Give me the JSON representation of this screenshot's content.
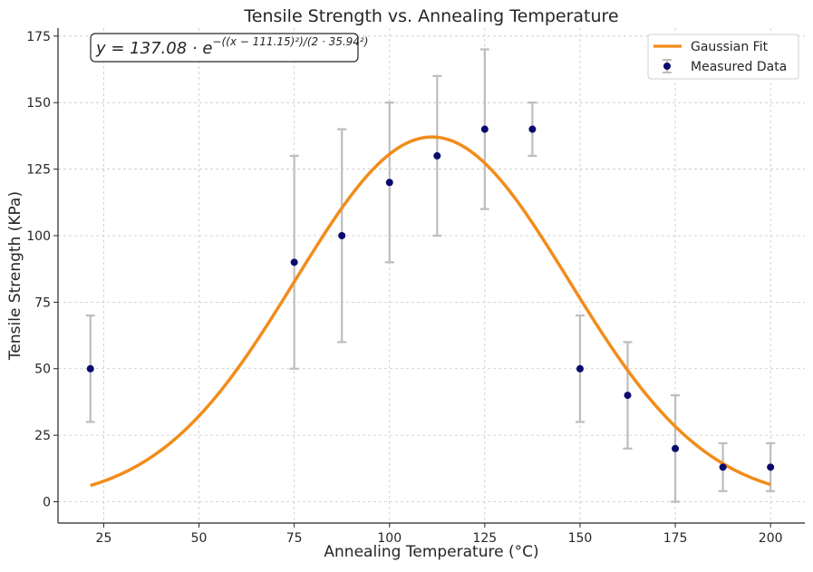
{
  "chart_data": {
    "type": "scatter",
    "title": "Tensile Strength vs. Annealing Temperature",
    "xlabel": "Annealing Temperature (°C)",
    "ylabel": "Tensile Strength (KPa)",
    "xlim": [
      13,
      209
    ],
    "ylim": [
      -8,
      178
    ],
    "xticks": [
      25,
      50,
      75,
      100,
      125,
      150,
      175,
      200
    ],
    "yticks": [
      0,
      25,
      50,
      75,
      100,
      125,
      150,
      175
    ],
    "grid": true,
    "legend_position": "top-right",
    "annotation": {
      "prefix": "y = 137.08 · e",
      "exponent": "−((x − 111.15)²)/(2 · 35.94²)"
    },
    "series": [
      {
        "name": "Gaussian Fit",
        "kind": "line",
        "color": "#f28c1a",
        "params": {
          "a": 137.08,
          "mu": 111.15,
          "sigma": 35.94
        },
        "x_range": [
          21.5,
          200
        ]
      },
      {
        "name": "Measured Data",
        "kind": "scatter",
        "color": "#0a0a6e",
        "error_color": "#bdbdbd",
        "points": [
          {
            "x": 21.5,
            "y": 50,
            "err": 20
          },
          {
            "x": 75,
            "y": 90,
            "err": 40
          },
          {
            "x": 87.5,
            "y": 100,
            "err": 40
          },
          {
            "x": 100,
            "y": 120,
            "err": 30
          },
          {
            "x": 112.5,
            "y": 130,
            "err": 30
          },
          {
            "x": 125,
            "y": 140,
            "err": 30
          },
          {
            "x": 137.5,
            "y": 140,
            "err": 10
          },
          {
            "x": 150,
            "y": 50,
            "err": 20
          },
          {
            "x": 162.5,
            "y": 40,
            "err": 20
          },
          {
            "x": 175,
            "y": 20,
            "err": 20
          },
          {
            "x": 187.5,
            "y": 13,
            "err": 9
          },
          {
            "x": 200,
            "y": 13,
            "err": 9
          }
        ]
      }
    ]
  }
}
